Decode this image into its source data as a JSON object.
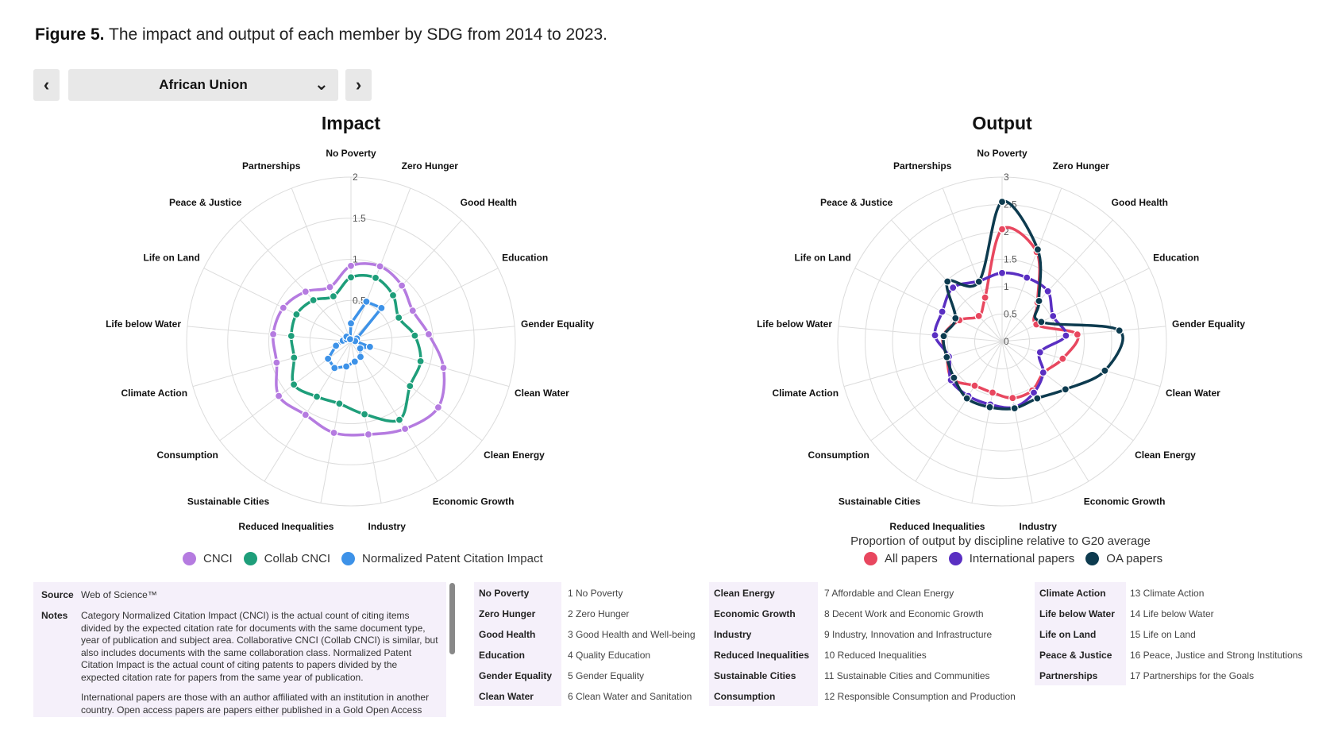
{
  "figure": {
    "label": "Figure 5.",
    "caption": "The impact and output of each member by SDG from 2014 to 2023."
  },
  "controls": {
    "prev_symbol": "‹",
    "next_symbol": "›",
    "selected_member": "African Union",
    "dropdown_symbol": "⌄"
  },
  "chart_data": [
    {
      "type": "radar",
      "title": "Impact",
      "axes": [
        "No Poverty",
        "Zero Hunger",
        "Good Health",
        "Education",
        "Gender Equality",
        "Clean Water",
        "Clean Energy",
        "Economic Growth",
        "Industry",
        "Reduced Inequalities",
        "Sustainable Cities",
        "Consumption",
        "Climate Action",
        "Life below Water",
        "Life on Land",
        "Peace & Justice",
        "Partnerships"
      ],
      "rlim": [
        0,
        2
      ],
      "ticks": [
        "0",
        "0.5",
        "1",
        "1.5",
        "2"
      ],
      "grid": true,
      "legend_position": "bottom",
      "series": [
        {
          "name": "CNCI",
          "color": "#b57be0",
          "values": [
            0.92,
            0.98,
            0.92,
            0.84,
            0.95,
            1.17,
            1.33,
            1.25,
            1.15,
            1.13,
            1.05,
            1.1,
            0.94,
            0.95,
            0.92,
            0.82,
            0.71
          ]
        },
        {
          "name": "Collab CNCI",
          "color": "#1e9e7a",
          "values": [
            0.78,
            0.83,
            0.76,
            0.65,
            0.78,
            0.88,
            0.9,
            1.12,
            0.9,
            0.77,
            0.79,
            0.87,
            0.72,
            0.73,
            0.74,
            0.68,
            0.59
          ]
        },
        {
          "name": "Normalized Patent Citation Impact",
          "color": "#3d92e8",
          "values": [
            0.22,
            0.52,
            0.55,
            0.08,
            0.05,
            0.24,
            0.14,
            0.22,
            0.25,
            0.31,
            0.38,
            0.35,
            0.19,
            0.1,
            0.06,
            0.08,
            0.03
          ]
        }
      ]
    },
    {
      "type": "radar",
      "title": "Output",
      "axes": [
        "No Poverty",
        "Zero Hunger",
        "Good Health",
        "Education",
        "Gender Equality",
        "Clean Water",
        "Clean Energy",
        "Economic Growth",
        "Industry",
        "Reduced Inequalities",
        "Sustainable Cities",
        "Consumption",
        "Climate Action",
        "Life below Water",
        "Life on Land",
        "Peace & Justice",
        "Partnerships"
      ],
      "rlim": [
        0,
        3
      ],
      "ticks": [
        "0",
        "0.5",
        "1",
        "1.5",
        "2",
        "2.5",
        "3"
      ],
      "grid": true,
      "legend_title": "Proportion of output by discipline relative to G20 average",
      "legend_position": "bottom",
      "series": [
        {
          "name": "All papers",
          "color": "#e8475f",
          "values": [
            2.05,
            1.75,
            0.96,
            0.7,
            1.38,
            1.15,
            0.95,
            1.05,
            1.05,
            0.95,
            0.95,
            1.14,
            1.05,
            1.08,
            0.87,
            0.63,
            0.86
          ]
        },
        {
          "name": "International papers",
          "color": "#5a2fc2",
          "values": [
            1.25,
            1.25,
            1.24,
            1.04,
            1.17,
            0.72,
            0.94,
            1.1,
            1.22,
            1.17,
            1.17,
            1.17,
            1.01,
            1.23,
            1.22,
            1.33,
            1.18
          ]
        },
        {
          "name": "OA papers",
          "color": "#0d3b4f",
          "values": [
            2.55,
            1.8,
            1.0,
            0.8,
            2.15,
            1.95,
            1.45,
            1.22,
            1.24,
            1.22,
            1.22,
            1.1,
            1.05,
            1.07,
            0.95,
            1.48,
            1.17
          ]
        }
      ]
    }
  ],
  "notes": {
    "source_label": "Source",
    "source_text": "Web of Science™",
    "notes_label": "Notes",
    "notes_para1": "Category Normalized Citation Impact (CNCI) is the actual count of citing items divided by the expected citation rate for documents with the same document type, year of publication and subject area. Collaborative CNCI (Collab CNCI) is similar, but also includes documents with the same collaboration class. Normalized Patent Citation Impact is the actual count of citing patents to papers divided by the expected citation rate for papers from the same year of publication.",
    "notes_para2": "International papers are those with an author affiliated with an institution in another country. Open access papers are papers either published in a Gold Open Access journal"
  },
  "sdg_key": [
    [
      {
        "short": "No Poverty",
        "full": "1 No Poverty"
      },
      {
        "short": "Zero Hunger",
        "full": "2 Zero Hunger"
      },
      {
        "short": "Good Health",
        "full": "3 Good Health and Well-being"
      },
      {
        "short": "Education",
        "full": "4 Quality Education"
      },
      {
        "short": "Gender Equality",
        "full": "5 Gender Equality"
      },
      {
        "short": "Clean Water",
        "full": "6 Clean Water and Sanitation"
      }
    ],
    [
      {
        "short": "Clean Energy",
        "full": "7 Affordable and Clean Energy"
      },
      {
        "short": "Economic Growth",
        "full": "8 Decent Work and Economic Growth"
      },
      {
        "short": "Industry",
        "full": "9 Industry, Innovation and Infrastructure"
      },
      {
        "short": "Reduced Inequalities",
        "full": "10 Reduced Inequalities"
      },
      {
        "short": "Sustainable Cities",
        "full": "11 Sustainable Cities and Communities"
      },
      {
        "short": "Consumption",
        "full": "12 Responsible Consumption and Production"
      }
    ],
    [
      {
        "short": "Climate Action",
        "full": "13 Climate Action"
      },
      {
        "short": "Life below Water",
        "full": "14 Life below Water"
      },
      {
        "short": "Life on Land",
        "full": "15 Life on Land"
      },
      {
        "short": "Peace & Justice",
        "full": "16 Peace, Justice and Strong Institutions"
      },
      {
        "short": "Partnerships",
        "full": "17 Partnerships for the Goals"
      }
    ]
  ]
}
